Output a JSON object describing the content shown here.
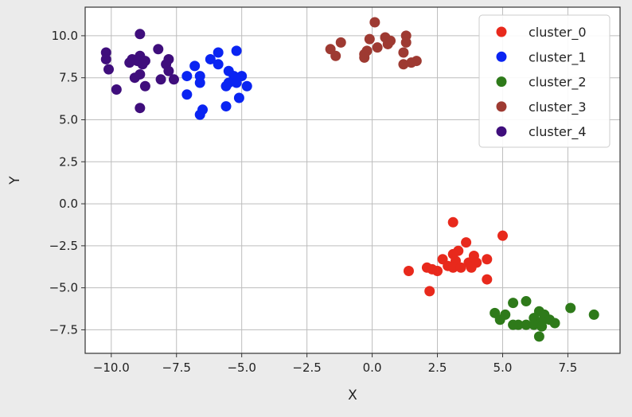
{
  "chart_data": {
    "type": "scatter",
    "title": "",
    "xlabel": "X",
    "ylabel": "Y",
    "xlim": [
      -11.0,
      9.5
    ],
    "ylim": [
      -8.9,
      11.7
    ],
    "xticks": [
      -10.0,
      -7.5,
      -5.0,
      -2.5,
      0.0,
      2.5,
      5.0,
      7.5
    ],
    "xtick_labels": [
      "−10.0",
      "−7.5",
      "−5.0",
      "−2.5",
      "0.0",
      "2.5",
      "5.0",
      "7.5"
    ],
    "yticks": [
      -7.5,
      -5.0,
      -2.5,
      0.0,
      2.5,
      5.0,
      7.5,
      10.0
    ],
    "ytick_labels": [
      "−7.5",
      "−5.0",
      "−2.5",
      "0.0",
      "2.5",
      "5.0",
      "7.5",
      "10.0"
    ],
    "grid": true,
    "legend": "top-right",
    "series": [
      {
        "name": "cluster_0",
        "color": "#e8291c",
        "points": [
          [
            3.1,
            -1.1
          ],
          [
            5.0,
            -1.9
          ],
          [
            3.6,
            -2.3
          ],
          [
            3.3,
            -2.8
          ],
          [
            3.1,
            -3.0
          ],
          [
            2.7,
            -3.3
          ],
          [
            3.2,
            -3.4
          ],
          [
            3.9,
            -3.1
          ],
          [
            4.4,
            -3.3
          ],
          [
            3.7,
            -3.5
          ],
          [
            4.0,
            -3.5
          ],
          [
            2.9,
            -3.7
          ],
          [
            3.1,
            -3.8
          ],
          [
            3.4,
            -3.8
          ],
          [
            3.8,
            -3.8
          ],
          [
            2.1,
            -3.8
          ],
          [
            2.3,
            -3.9
          ],
          [
            2.5,
            -4.0
          ],
          [
            1.4,
            -4.0
          ],
          [
            4.4,
            -4.5
          ],
          [
            2.2,
            -5.2
          ]
        ]
      },
      {
        "name": "cluster_1",
        "color": "#0a24f2",
        "points": [
          [
            -5.2,
            9.1
          ],
          [
            -5.9,
            9.0
          ],
          [
            -6.2,
            8.6
          ],
          [
            -5.9,
            8.3
          ],
          [
            -6.8,
            8.2
          ],
          [
            -5.5,
            7.9
          ],
          [
            -5.3,
            7.6
          ],
          [
            -7.1,
            7.6
          ],
          [
            -6.6,
            7.6
          ],
          [
            -5.0,
            7.6
          ],
          [
            -6.6,
            7.2
          ],
          [
            -5.5,
            7.2
          ],
          [
            -5.2,
            7.2
          ],
          [
            -5.6,
            7.0
          ],
          [
            -4.8,
            7.0
          ],
          [
            -7.1,
            6.5
          ],
          [
            -5.1,
            6.3
          ],
          [
            -5.6,
            5.8
          ],
          [
            -6.5,
            5.6
          ],
          [
            -6.6,
            5.3
          ]
        ]
      },
      {
        "name": "cluster_2",
        "color": "#2e7a1a",
        "points": [
          [
            5.4,
            -5.9
          ],
          [
            5.9,
            -5.8
          ],
          [
            7.6,
            -6.2
          ],
          [
            6.4,
            -6.4
          ],
          [
            4.7,
            -6.5
          ],
          [
            6.6,
            -6.6
          ],
          [
            8.5,
            -6.6
          ],
          [
            5.1,
            -6.6
          ],
          [
            6.2,
            -6.8
          ],
          [
            4.9,
            -6.9
          ],
          [
            6.8,
            -6.9
          ],
          [
            6.5,
            -7.0
          ],
          [
            7.0,
            -7.1
          ],
          [
            5.6,
            -7.2
          ],
          [
            5.4,
            -7.2
          ],
          [
            5.9,
            -7.2
          ],
          [
            6.2,
            -7.2
          ],
          [
            6.5,
            -7.3
          ],
          [
            6.4,
            -7.9
          ]
        ]
      },
      {
        "name": "cluster_3",
        "color": "#9e3a32",
        "points": [
          [
            0.1,
            10.8
          ],
          [
            1.3,
            10.0
          ],
          [
            0.5,
            9.9
          ],
          [
            -0.1,
            9.8
          ],
          [
            0.7,
            9.7
          ],
          [
            -1.2,
            9.6
          ],
          [
            1.3,
            9.6
          ],
          [
            0.6,
            9.5
          ],
          [
            0.2,
            9.3
          ],
          [
            -1.6,
            9.2
          ],
          [
            -0.2,
            9.1
          ],
          [
            1.2,
            9.0
          ],
          [
            -0.3,
            8.9
          ],
          [
            -1.4,
            8.8
          ],
          [
            -0.3,
            8.7
          ],
          [
            1.7,
            8.5
          ],
          [
            1.5,
            8.4
          ],
          [
            1.2,
            8.3
          ]
        ]
      },
      {
        "name": "cluster_4",
        "color": "#3f0e7c",
        "points": [
          [
            -8.9,
            10.1
          ],
          [
            -8.2,
            9.2
          ],
          [
            -10.2,
            9.0
          ],
          [
            -8.9,
            8.8
          ],
          [
            -10.2,
            8.6
          ],
          [
            -9.2,
            8.6
          ],
          [
            -7.8,
            8.6
          ],
          [
            -9.0,
            8.5
          ],
          [
            -8.7,
            8.5
          ],
          [
            -9.3,
            8.4
          ],
          [
            -8.8,
            8.3
          ],
          [
            -7.9,
            8.3
          ],
          [
            -10.1,
            8.0
          ],
          [
            -7.8,
            7.9
          ],
          [
            -8.9,
            7.7
          ],
          [
            -9.1,
            7.5
          ],
          [
            -8.1,
            7.4
          ],
          [
            -7.6,
            7.4
          ],
          [
            -8.7,
            7.0
          ],
          [
            -9.8,
            6.8
          ],
          [
            -8.9,
            5.7
          ]
        ]
      }
    ]
  }
}
